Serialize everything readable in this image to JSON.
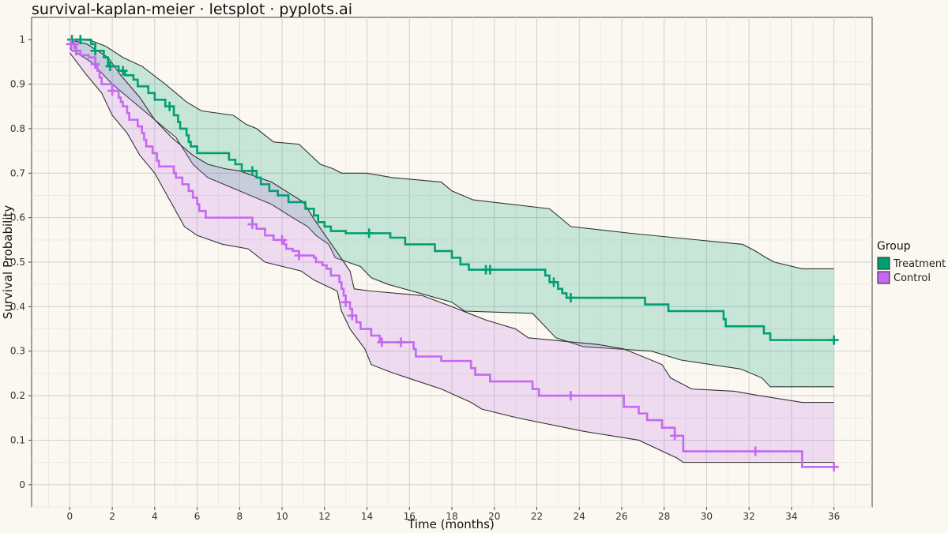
{
  "chart_data": {
    "type": "line",
    "title": "survival-kaplan-meier · letsplot · pyplots.ai",
    "xlabel": "Time (months)",
    "ylabel": "Survival Probability",
    "xlim": [
      -1.8,
      37.8
    ],
    "ylim": [
      -0.05,
      1.05
    ],
    "x_ticks": [
      0,
      2,
      4,
      6,
      8,
      10,
      12,
      14,
      16,
      18,
      20,
      22,
      24,
      26,
      28,
      30,
      32,
      34,
      36
    ],
    "x_tick_labels": [
      "0",
      "2",
      "4",
      "6",
      "8",
      "10",
      "12",
      "14",
      "16",
      "18",
      "20",
      "22",
      "24",
      "26",
      "28",
      "30",
      "32",
      "34",
      "36"
    ],
    "y_ticks": [
      0,
      0.1,
      0.2,
      0.3,
      0.4,
      0.5,
      0.6,
      0.7,
      0.8,
      0.9,
      1
    ],
    "y_tick_labels": [
      "0",
      "0.1",
      "0.2",
      "0.3",
      "0.4",
      "0.5",
      "0.6",
      "0.7",
      "0.8",
      "0.9",
      "1"
    ],
    "grid": true,
    "legend": {
      "title": "Group",
      "position": "right",
      "entries": [
        "Treatment",
        "Control"
      ]
    },
    "series": [
      {
        "name": "Treatment",
        "color": "#009E73",
        "fill_color": "#009E73",
        "steps": [
          [
            0,
            1.0
          ],
          [
            1.0,
            0.99
          ],
          [
            1.2,
            0.975
          ],
          [
            1.6,
            0.96
          ],
          [
            1.8,
            0.94
          ],
          [
            2.3,
            0.93
          ],
          [
            2.6,
            0.92
          ],
          [
            3.0,
            0.91
          ],
          [
            3.2,
            0.895
          ],
          [
            3.7,
            0.88
          ],
          [
            4.0,
            0.865
          ],
          [
            4.5,
            0.85
          ],
          [
            4.9,
            0.83
          ],
          [
            5.1,
            0.815
          ],
          [
            5.2,
            0.8
          ],
          [
            5.5,
            0.785
          ],
          [
            5.6,
            0.77
          ],
          [
            5.7,
            0.76
          ],
          [
            6.0,
            0.745
          ],
          [
            7.5,
            0.73
          ],
          [
            7.8,
            0.72
          ],
          [
            8.1,
            0.705
          ],
          [
            8.8,
            0.69
          ],
          [
            9.0,
            0.675
          ],
          [
            9.4,
            0.66
          ],
          [
            9.8,
            0.65
          ],
          [
            10.3,
            0.635
          ],
          [
            11.1,
            0.62
          ],
          [
            11.5,
            0.605
          ],
          [
            11.7,
            0.59
          ],
          [
            12.0,
            0.58
          ],
          [
            12.3,
            0.57
          ],
          [
            13.0,
            0.565
          ],
          [
            15.1,
            0.555
          ],
          [
            15.8,
            0.54
          ],
          [
            17.2,
            0.525
          ],
          [
            18.0,
            0.51
          ],
          [
            18.4,
            0.495
          ],
          [
            18.8,
            0.483
          ],
          [
            22.4,
            0.47
          ],
          [
            22.6,
            0.455
          ],
          [
            23.0,
            0.44
          ],
          [
            23.2,
            0.43
          ],
          [
            23.4,
            0.42
          ],
          [
            27.1,
            0.405
          ],
          [
            28.2,
            0.39
          ],
          [
            30.8,
            0.372
          ],
          [
            30.9,
            0.356
          ],
          [
            32.7,
            0.34
          ],
          [
            33.0,
            0.325
          ],
          [
            36.0,
            0.325
          ]
        ],
        "upper": [
          [
            0,
            1.0
          ],
          [
            1,
            0.998
          ],
          [
            1.7,
            0.985
          ],
          [
            2.5,
            0.96
          ],
          [
            3.4,
            0.94
          ],
          [
            4.5,
            0.9
          ],
          [
            5.5,
            0.86
          ],
          [
            6.2,
            0.84
          ],
          [
            7.7,
            0.83
          ],
          [
            8.3,
            0.81
          ],
          [
            8.8,
            0.8
          ],
          [
            9.6,
            0.77
          ],
          [
            10.8,
            0.765
          ],
          [
            11.8,
            0.72
          ],
          [
            12.4,
            0.71
          ],
          [
            12.8,
            0.7
          ],
          [
            14.0,
            0.7
          ],
          [
            15.2,
            0.69
          ],
          [
            17.5,
            0.68
          ],
          [
            18.0,
            0.66
          ],
          [
            19.0,
            0.64
          ],
          [
            22.6,
            0.62
          ],
          [
            23.6,
            0.58
          ],
          [
            26.4,
            0.565
          ],
          [
            31.7,
            0.54
          ],
          [
            32.3,
            0.525
          ],
          [
            32.8,
            0.51
          ],
          [
            33.2,
            0.5
          ],
          [
            34.5,
            0.485
          ],
          [
            36.0,
            0.485
          ]
        ],
        "lower": [
          [
            0,
            0.98
          ],
          [
            1,
            0.95
          ],
          [
            2,
            0.9
          ],
          [
            3,
            0.86
          ],
          [
            4,
            0.82
          ],
          [
            5,
            0.78
          ],
          [
            5.8,
            0.72
          ],
          [
            6.5,
            0.69
          ],
          [
            7.5,
            0.67
          ],
          [
            8.5,
            0.65
          ],
          [
            9.5,
            0.63
          ],
          [
            10.5,
            0.6
          ],
          [
            11.2,
            0.58
          ],
          [
            11.6,
            0.56
          ],
          [
            12.2,
            0.54
          ],
          [
            12.5,
            0.51
          ],
          [
            13.7,
            0.49
          ],
          [
            14.2,
            0.465
          ],
          [
            15.0,
            0.45
          ],
          [
            16.5,
            0.43
          ],
          [
            18.0,
            0.41
          ],
          [
            18.6,
            0.39
          ],
          [
            21.8,
            0.385
          ],
          [
            22.9,
            0.33
          ],
          [
            24.2,
            0.31
          ],
          [
            27.4,
            0.3
          ],
          [
            28.8,
            0.28
          ],
          [
            31.6,
            0.26
          ],
          [
            32.6,
            0.24
          ],
          [
            33.0,
            0.22
          ],
          [
            36.0,
            0.22
          ]
        ],
        "censor_times": [
          0.1,
          0.5,
          1.2,
          1.9,
          2.5,
          4.7,
          8.6,
          14.1,
          19.6,
          19.8,
          22.8,
          23.6,
          36.0
        ]
      },
      {
        "name": "Control",
        "color": "#C469F0",
        "fill_color": "#C469F0",
        "steps": [
          [
            0,
            0.99
          ],
          [
            0.3,
            0.975
          ],
          [
            0.5,
            0.965
          ],
          [
            0.9,
            0.96
          ],
          [
            1.2,
            0.945
          ],
          [
            1.3,
            0.93
          ],
          [
            1.4,
            0.915
          ],
          [
            1.5,
            0.9
          ],
          [
            2.0,
            0.885
          ],
          [
            2.3,
            0.87
          ],
          [
            2.4,
            0.86
          ],
          [
            2.5,
            0.85
          ],
          [
            2.7,
            0.835
          ],
          [
            2.8,
            0.82
          ],
          [
            3.2,
            0.805
          ],
          [
            3.4,
            0.79
          ],
          [
            3.5,
            0.775
          ],
          [
            3.6,
            0.76
          ],
          [
            3.9,
            0.745
          ],
          [
            4.1,
            0.728
          ],
          [
            4.2,
            0.715
          ],
          [
            4.9,
            0.7
          ],
          [
            5.0,
            0.69
          ],
          [
            5.3,
            0.675
          ],
          [
            5.6,
            0.66
          ],
          [
            5.8,
            0.645
          ],
          [
            6.0,
            0.63
          ],
          [
            6.1,
            0.615
          ],
          [
            6.4,
            0.6
          ],
          [
            8.6,
            0.585
          ],
          [
            8.8,
            0.575
          ],
          [
            9.2,
            0.56
          ],
          [
            9.6,
            0.55
          ],
          [
            10.1,
            0.54
          ],
          [
            10.2,
            0.53
          ],
          [
            10.5,
            0.525
          ],
          [
            10.8,
            0.515
          ],
          [
            11.5,
            0.51
          ],
          [
            11.6,
            0.5
          ],
          [
            11.9,
            0.493
          ],
          [
            12.1,
            0.485
          ],
          [
            12.3,
            0.47
          ],
          [
            12.7,
            0.455
          ],
          [
            12.8,
            0.44
          ],
          [
            12.9,
            0.425
          ],
          [
            13.0,
            0.41
          ],
          [
            13.2,
            0.395
          ],
          [
            13.3,
            0.38
          ],
          [
            13.5,
            0.365
          ],
          [
            13.7,
            0.35
          ],
          [
            14.2,
            0.335
          ],
          [
            14.6,
            0.32
          ],
          [
            16.2,
            0.305
          ],
          [
            16.3,
            0.288
          ],
          [
            17.5,
            0.278
          ],
          [
            18.9,
            0.262
          ],
          [
            19.1,
            0.247
          ],
          [
            19.8,
            0.232
          ],
          [
            21.8,
            0.215
          ],
          [
            22.1,
            0.2
          ],
          [
            26.1,
            0.175
          ],
          [
            26.8,
            0.16
          ],
          [
            27.2,
            0.145
          ],
          [
            27.9,
            0.128
          ],
          [
            28.5,
            0.11
          ],
          [
            28.9,
            0.095
          ],
          [
            28.9,
            0.075
          ],
          [
            32.3,
            0.075
          ],
          [
            34.5,
            0.04
          ],
          [
            36.0,
            0.04
          ]
        ],
        "upper": [
          [
            0,
            1.0
          ],
          [
            0.8,
            0.99
          ],
          [
            1.8,
            0.96
          ],
          [
            2.4,
            0.92
          ],
          [
            3.3,
            0.87
          ],
          [
            4.0,
            0.82
          ],
          [
            4.8,
            0.78
          ],
          [
            5.8,
            0.74
          ],
          [
            6.5,
            0.72
          ],
          [
            7.3,
            0.71
          ],
          [
            8.0,
            0.705
          ],
          [
            9.5,
            0.68
          ],
          [
            11.0,
            0.635
          ],
          [
            11.6,
            0.59
          ],
          [
            12.7,
            0.515
          ],
          [
            13.2,
            0.48
          ],
          [
            13.4,
            0.44
          ],
          [
            14.2,
            0.435
          ],
          [
            16.6,
            0.425
          ],
          [
            18.0,
            0.4
          ],
          [
            18.8,
            0.385
          ],
          [
            19.6,
            0.37
          ],
          [
            21.0,
            0.35
          ],
          [
            21.6,
            0.33
          ],
          [
            24.9,
            0.315
          ],
          [
            26.1,
            0.305
          ],
          [
            27.9,
            0.27
          ],
          [
            28.3,
            0.24
          ],
          [
            29.3,
            0.215
          ],
          [
            31.3,
            0.21
          ],
          [
            32.5,
            0.2
          ],
          [
            34.5,
            0.185
          ],
          [
            36.0,
            0.185
          ]
        ],
        "lower": [
          [
            0,
            0.97
          ],
          [
            0.8,
            0.92
          ],
          [
            1.5,
            0.88
          ],
          [
            2.0,
            0.83
          ],
          [
            2.7,
            0.79
          ],
          [
            3.3,
            0.74
          ],
          [
            4.0,
            0.7
          ],
          [
            4.7,
            0.64
          ],
          [
            5.4,
            0.58
          ],
          [
            6.0,
            0.56
          ],
          [
            7.2,
            0.54
          ],
          [
            8.4,
            0.53
          ],
          [
            9.2,
            0.5
          ],
          [
            10.9,
            0.48
          ],
          [
            11.5,
            0.46
          ],
          [
            12.6,
            0.435
          ],
          [
            12.8,
            0.39
          ],
          [
            13.2,
            0.35
          ],
          [
            13.9,
            0.305
          ],
          [
            14.2,
            0.27
          ],
          [
            15.0,
            0.255
          ],
          [
            15.6,
            0.245
          ],
          [
            17.5,
            0.215
          ],
          [
            18.9,
            0.185
          ],
          [
            19.4,
            0.17
          ],
          [
            21.1,
            0.15
          ],
          [
            24.2,
            0.12
          ],
          [
            26.8,
            0.1
          ],
          [
            28.6,
            0.06
          ],
          [
            28.9,
            0.05
          ],
          [
            36.0,
            0.05
          ]
        ],
        "censor_times": [
          0.05,
          0.2,
          0.3,
          1.2,
          2.0,
          8.6,
          10.0,
          10.8,
          13.0,
          13.3,
          14.7,
          15.6,
          23.6,
          28.5,
          32.3,
          36.0
        ]
      }
    ]
  }
}
